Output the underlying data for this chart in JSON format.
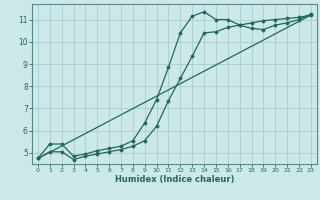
{
  "xlabel": "Humidex (Indice chaleur)",
  "bg_color": "#cde8e8",
  "grid_color": "#aacccc",
  "line_color": "#1a6b5a",
  "spine_color": "#5a8a8a",
  "xlim": [
    -0.5,
    23.5
  ],
  "ylim": [
    4.5,
    11.7
  ],
  "xticks": [
    0,
    1,
    2,
    3,
    4,
    5,
    6,
    7,
    8,
    9,
    10,
    11,
    12,
    13,
    14,
    15,
    16,
    17,
    18,
    19,
    20,
    21,
    22,
    23
  ],
  "yticks": [
    5,
    6,
    7,
    8,
    9,
    10,
    11
  ],
  "line1_x": [
    0,
    1,
    2,
    3,
    4,
    5,
    6,
    7,
    8,
    9,
    10,
    11,
    12,
    13,
    14,
    15,
    16,
    17,
    18,
    19,
    20,
    21,
    22,
    23
  ],
  "line1_y": [
    4.75,
    5.4,
    5.4,
    4.85,
    4.95,
    5.1,
    5.2,
    5.3,
    5.55,
    6.35,
    7.4,
    8.85,
    10.4,
    11.15,
    11.35,
    11.0,
    11.0,
    10.75,
    10.6,
    10.55,
    10.75,
    10.85,
    11.0,
    11.25
  ],
  "line2_x": [
    0,
    1,
    2,
    3,
    4,
    5,
    6,
    7,
    8,
    9,
    10,
    11,
    12,
    13,
    14,
    15,
    16,
    17,
    18,
    19,
    20,
    21,
    22,
    23
  ],
  "line2_y": [
    4.75,
    5.05,
    5.05,
    4.7,
    4.85,
    4.95,
    5.05,
    5.15,
    5.3,
    5.55,
    6.2,
    7.35,
    8.35,
    9.35,
    10.4,
    10.45,
    10.65,
    10.75,
    10.85,
    10.95,
    11.0,
    11.05,
    11.1,
    11.2
  ],
  "line3_x": [
    0,
    23
  ],
  "line3_y": [
    4.75,
    11.2
  ]
}
